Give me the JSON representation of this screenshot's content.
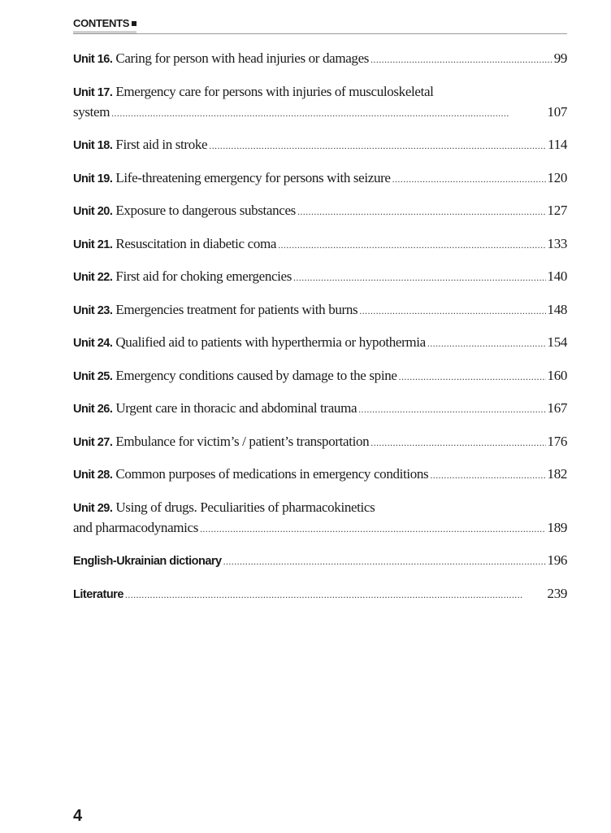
{
  "header": {
    "title": "CONTENTS"
  },
  "entries": [
    {
      "unit": "Unit 16.",
      "line1": "Caring for person with head injuries or damages",
      "line2": "",
      "page": "99"
    },
    {
      "unit": "Unit 17.",
      "line1": "Emergency care for persons with injuries of musculoskeletal",
      "line2": "system",
      "page": "107"
    },
    {
      "unit": "Unit 18.",
      "line1": "First aid in stroke",
      "line2": "",
      "page": "114"
    },
    {
      "unit": "Unit 19.",
      "line1": "Life-threatening emergency for persons with seizure",
      "line2": "",
      "page": "120"
    },
    {
      "unit": "Unit 20.",
      "line1": "Exposure to dangerous substances",
      "line2": "",
      "page": "127"
    },
    {
      "unit": "Unit 21.",
      "line1": "Resuscitation in diabetic coma",
      "line2": "",
      "page": "133"
    },
    {
      "unit": "Unit 22.",
      "line1": "First aid for choking emergencies",
      "line2": "",
      "page": "140"
    },
    {
      "unit": "Unit 23.",
      "line1": "Emergencies treatment for patients with burns",
      "line2": "",
      "page": "148"
    },
    {
      "unit": "Unit 24.",
      "line1": "Qualified aid to patients with hyperthermia or hypothermia",
      "line2": "",
      "page": "154"
    },
    {
      "unit": "Unit 25.",
      "line1": "Emergency conditions caused by damage to the spine",
      "line2": "",
      "page": "160"
    },
    {
      "unit": "Unit 26.",
      "line1": "Urgent care in thoracic and abdominal trauma",
      "line2": "",
      "page": "167"
    },
    {
      "unit": "Unit 27.",
      "line1": "Embulance for victim’s / patient’s transportation",
      "line2": "",
      "page": "176"
    },
    {
      "unit": "Unit 28.",
      "line1": "Common purposes of medications in emergency conditions",
      "line2": "",
      "page": "182"
    },
    {
      "unit": "Unit 29.",
      "line1": "Using of drugs. Peculiarities of pharmacokinetics",
      "line2": "and pharmacodynamics",
      "page": "189"
    }
  ],
  "extras": [
    {
      "title": "English-Ukrainian dictionary",
      "page": "196"
    },
    {
      "title": "Literature",
      "page": "239"
    }
  ],
  "page_number": "4"
}
